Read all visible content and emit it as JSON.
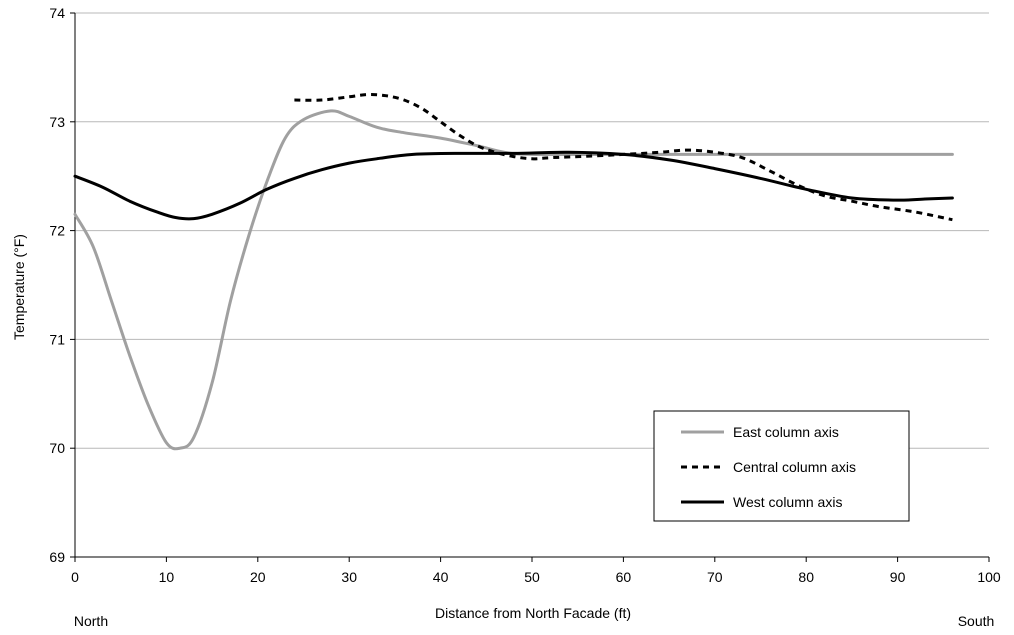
{
  "chart_data": {
    "type": "line",
    "title": "",
    "xlabel": "Distance from North Facade (ft)",
    "ylabel": "Temperature (°F)",
    "xlim": [
      0,
      100
    ],
    "ylim": [
      69,
      74
    ],
    "xticks": [
      "0",
      "10",
      "20",
      "30",
      "40",
      "50",
      "60",
      "70",
      "80",
      "90",
      "100"
    ],
    "yticks": [
      "69",
      "70",
      "71",
      "72",
      "73",
      "74"
    ],
    "grid": "horizontal major gridlines",
    "legend_position": "bottom-right inside plot",
    "annotations": {
      "left": "North",
      "right": "South"
    },
    "series": [
      {
        "name": "East column axis",
        "color": "#a0a0a0",
        "style": "solid",
        "points": [
          [
            0,
            72.15
          ],
          [
            2,
            71.85
          ],
          [
            4,
            71.35
          ],
          [
            6,
            70.85
          ],
          [
            8,
            70.4
          ],
          [
            10,
            70.05
          ],
          [
            11.5,
            70.0
          ],
          [
            13,
            70.1
          ],
          [
            15,
            70.6
          ],
          [
            17,
            71.35
          ],
          [
            19,
            71.95
          ],
          [
            21,
            72.45
          ],
          [
            23,
            72.85
          ],
          [
            25,
            73.02
          ],
          [
            28,
            73.1
          ],
          [
            30,
            73.05
          ],
          [
            33,
            72.95
          ],
          [
            36,
            72.9
          ],
          [
            40,
            72.85
          ],
          [
            44,
            72.78
          ],
          [
            47,
            72.72
          ],
          [
            50,
            72.7
          ],
          [
            60,
            72.7
          ],
          [
            70,
            72.7
          ],
          [
            80,
            72.7
          ],
          [
            90,
            72.7
          ],
          [
            96,
            72.7
          ]
        ]
      },
      {
        "name": "Central column axis",
        "color": "#000000",
        "style": "dashed",
        "points": [
          [
            24,
            73.2
          ],
          [
            27,
            73.2
          ],
          [
            30,
            73.23
          ],
          [
            32,
            73.25
          ],
          [
            34,
            73.24
          ],
          [
            36,
            73.2
          ],
          [
            38,
            73.12
          ],
          [
            40,
            73.0
          ],
          [
            42,
            72.88
          ],
          [
            44,
            72.78
          ],
          [
            46,
            72.72
          ],
          [
            48,
            72.68
          ],
          [
            50,
            72.66
          ],
          [
            52,
            72.67
          ],
          [
            55,
            72.68
          ],
          [
            60,
            72.7
          ],
          [
            64,
            72.72
          ],
          [
            67,
            72.74
          ],
          [
            70,
            72.72
          ],
          [
            73,
            72.67
          ],
          [
            76,
            72.55
          ],
          [
            79,
            72.42
          ],
          [
            82,
            72.32
          ],
          [
            85,
            72.27
          ],
          [
            88,
            72.22
          ],
          [
            92,
            72.17
          ],
          [
            96,
            72.1
          ]
        ]
      },
      {
        "name": "West column axis",
        "color": "#000000",
        "style": "solid",
        "points": [
          [
            0,
            72.5
          ],
          [
            3,
            72.4
          ],
          [
            6,
            72.27
          ],
          [
            9,
            72.17
          ],
          [
            11,
            72.12
          ],
          [
            13,
            72.11
          ],
          [
            15,
            72.15
          ],
          [
            18,
            72.25
          ],
          [
            21,
            72.38
          ],
          [
            24,
            72.48
          ],
          [
            27,
            72.56
          ],
          [
            30,
            72.62
          ],
          [
            33,
            72.66
          ],
          [
            37,
            72.7
          ],
          [
            42,
            72.71
          ],
          [
            48,
            72.71
          ],
          [
            54,
            72.72
          ],
          [
            60,
            72.7
          ],
          [
            65,
            72.65
          ],
          [
            70,
            72.57
          ],
          [
            75,
            72.48
          ],
          [
            80,
            72.38
          ],
          [
            85,
            72.3
          ],
          [
            90,
            72.28
          ],
          [
            93,
            72.29
          ],
          [
            96,
            72.3
          ]
        ]
      }
    ]
  }
}
